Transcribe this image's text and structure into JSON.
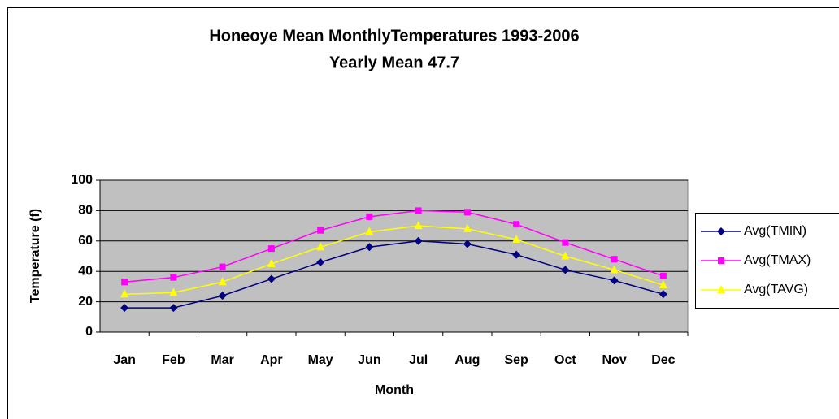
{
  "chart_data": {
    "type": "line",
    "title": "Honeoye Mean MonthlyTemperatures 1993-2006",
    "subtitle": "Yearly Mean 47.7",
    "x_label": "Month",
    "y_label": "Temperature (f)",
    "categories": [
      "Jan",
      "Feb",
      "Mar",
      "Apr",
      "May",
      "Jun",
      "Jul",
      "Aug",
      "Sep",
      "Oct",
      "Nov",
      "Dec"
    ],
    "series": [
      {
        "name": "Avg(TMIN)",
        "color": "#000080",
        "marker": "diamond",
        "values": [
          16,
          16,
          24,
          35,
          46,
          56,
          60,
          58,
          51,
          41,
          34,
          25
        ]
      },
      {
        "name": "Avg(TMAX)",
        "color": "#ff00ff",
        "marker": "square",
        "values": [
          33,
          36,
          43,
          55,
          67,
          76,
          80,
          79,
          71,
          59,
          48,
          37
        ]
      },
      {
        "name": "Avg(TAVG)",
        "color": "#ffff00",
        "marker": "triangle",
        "values": [
          25,
          26,
          33,
          45,
          56,
          66,
          70,
          68,
          61,
          50,
          41,
          31
        ]
      }
    ],
    "ylim": [
      0,
      100
    ],
    "yticks": [
      0,
      20,
      40,
      60,
      80,
      100
    ],
    "grid": true,
    "legend": "right"
  }
}
